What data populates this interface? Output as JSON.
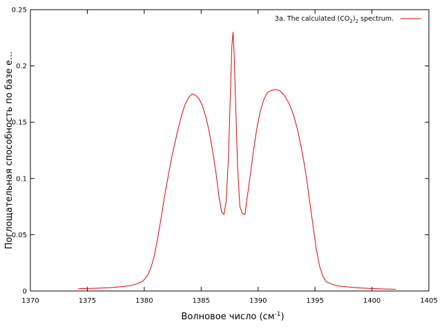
{
  "chart_data": {
    "type": "line",
    "title": "",
    "xlabel": "Волновое число (см",
    "xlabel_sup": "-1",
    "xlabel_tail": ")",
    "ylabel": "Поглощательная способность по базе е...",
    "xlim": [
      1370,
      1405
    ],
    "ylim": [
      0,
      0.25
    ],
    "x_ticks": [
      1370,
      1375,
      1380,
      1385,
      1390,
      1395,
      1400,
      1405
    ],
    "x_tick_labels": [
      "1370",
      "1375",
      "1380",
      "1385",
      "1390",
      "1395",
      "1400",
      "1405"
    ],
    "y_ticks": [
      0,
      0.05,
      0.1,
      0.15,
      0.2,
      0.25
    ],
    "y_tick_labels": [
      "0",
      "0.05",
      "0.1",
      "0.15",
      "0.2",
      "0.25"
    ],
    "grid": false,
    "legend_position": "top-right",
    "series": [
      {
        "name": "3a. The calculated (CO2)2 spectrum.",
        "legend_parts": [
          "3a. The calculated (CO",
          "2",
          ")",
          "2",
          " spectrum."
        ],
        "color": "#dd0000",
        "points": [
          [
            1374.2,
            0.002
          ],
          [
            1375.0,
            0.0022
          ],
          [
            1376.0,
            0.0025
          ],
          [
            1377.0,
            0.003
          ],
          [
            1378.0,
            0.0038
          ],
          [
            1378.8,
            0.0048
          ],
          [
            1379.4,
            0.0065
          ],
          [
            1379.9,
            0.009
          ],
          [
            1380.3,
            0.014
          ],
          [
            1380.6,
            0.021
          ],
          [
            1380.9,
            0.032
          ],
          [
            1381.2,
            0.048
          ],
          [
            1381.5,
            0.066
          ],
          [
            1381.8,
            0.085
          ],
          [
            1382.1,
            0.102
          ],
          [
            1382.4,
            0.118
          ],
          [
            1382.7,
            0.132
          ],
          [
            1383.0,
            0.145
          ],
          [
            1383.3,
            0.157
          ],
          [
            1383.6,
            0.166
          ],
          [
            1383.9,
            0.172
          ],
          [
            1384.2,
            0.175
          ],
          [
            1384.5,
            0.174
          ],
          [
            1384.8,
            0.171
          ],
          [
            1385.1,
            0.165
          ],
          [
            1385.4,
            0.155
          ],
          [
            1385.7,
            0.142
          ],
          [
            1386.0,
            0.125
          ],
          [
            1386.3,
            0.105
          ],
          [
            1386.55,
            0.085
          ],
          [
            1386.8,
            0.07
          ],
          [
            1387.0,
            0.068
          ],
          [
            1387.2,
            0.08
          ],
          [
            1387.4,
            0.12
          ],
          [
            1387.55,
            0.17
          ],
          [
            1387.7,
            0.218
          ],
          [
            1387.8,
            0.23
          ],
          [
            1387.9,
            0.21
          ],
          [
            1388.05,
            0.16
          ],
          [
            1388.2,
            0.11
          ],
          [
            1388.4,
            0.075
          ],
          [
            1388.6,
            0.069
          ],
          [
            1388.85,
            0.068
          ],
          [
            1389.0,
            0.08
          ],
          [
            1389.3,
            0.102
          ],
          [
            1389.6,
            0.125
          ],
          [
            1389.9,
            0.145
          ],
          [
            1390.2,
            0.16
          ],
          [
            1390.5,
            0.17
          ],
          [
            1390.8,
            0.176
          ],
          [
            1391.1,
            0.178
          ],
          [
            1391.5,
            0.179
          ],
          [
            1391.9,
            0.178
          ],
          [
            1392.3,
            0.174
          ],
          [
            1392.7,
            0.167
          ],
          [
            1393.1,
            0.157
          ],
          [
            1393.5,
            0.142
          ],
          [
            1393.9,
            0.122
          ],
          [
            1394.2,
            0.104
          ],
          [
            1394.5,
            0.082
          ],
          [
            1394.8,
            0.06
          ],
          [
            1395.1,
            0.038
          ],
          [
            1395.4,
            0.022
          ],
          [
            1395.7,
            0.013
          ],
          [
            1396.0,
            0.008
          ],
          [
            1396.5,
            0.006
          ],
          [
            1397.0,
            0.0045
          ],
          [
            1398.0,
            0.0035
          ],
          [
            1399.0,
            0.0027
          ],
          [
            1400.0,
            0.0022
          ],
          [
            1401.0,
            0.0018
          ],
          [
            1402.1,
            0.0015
          ]
        ]
      }
    ]
  }
}
